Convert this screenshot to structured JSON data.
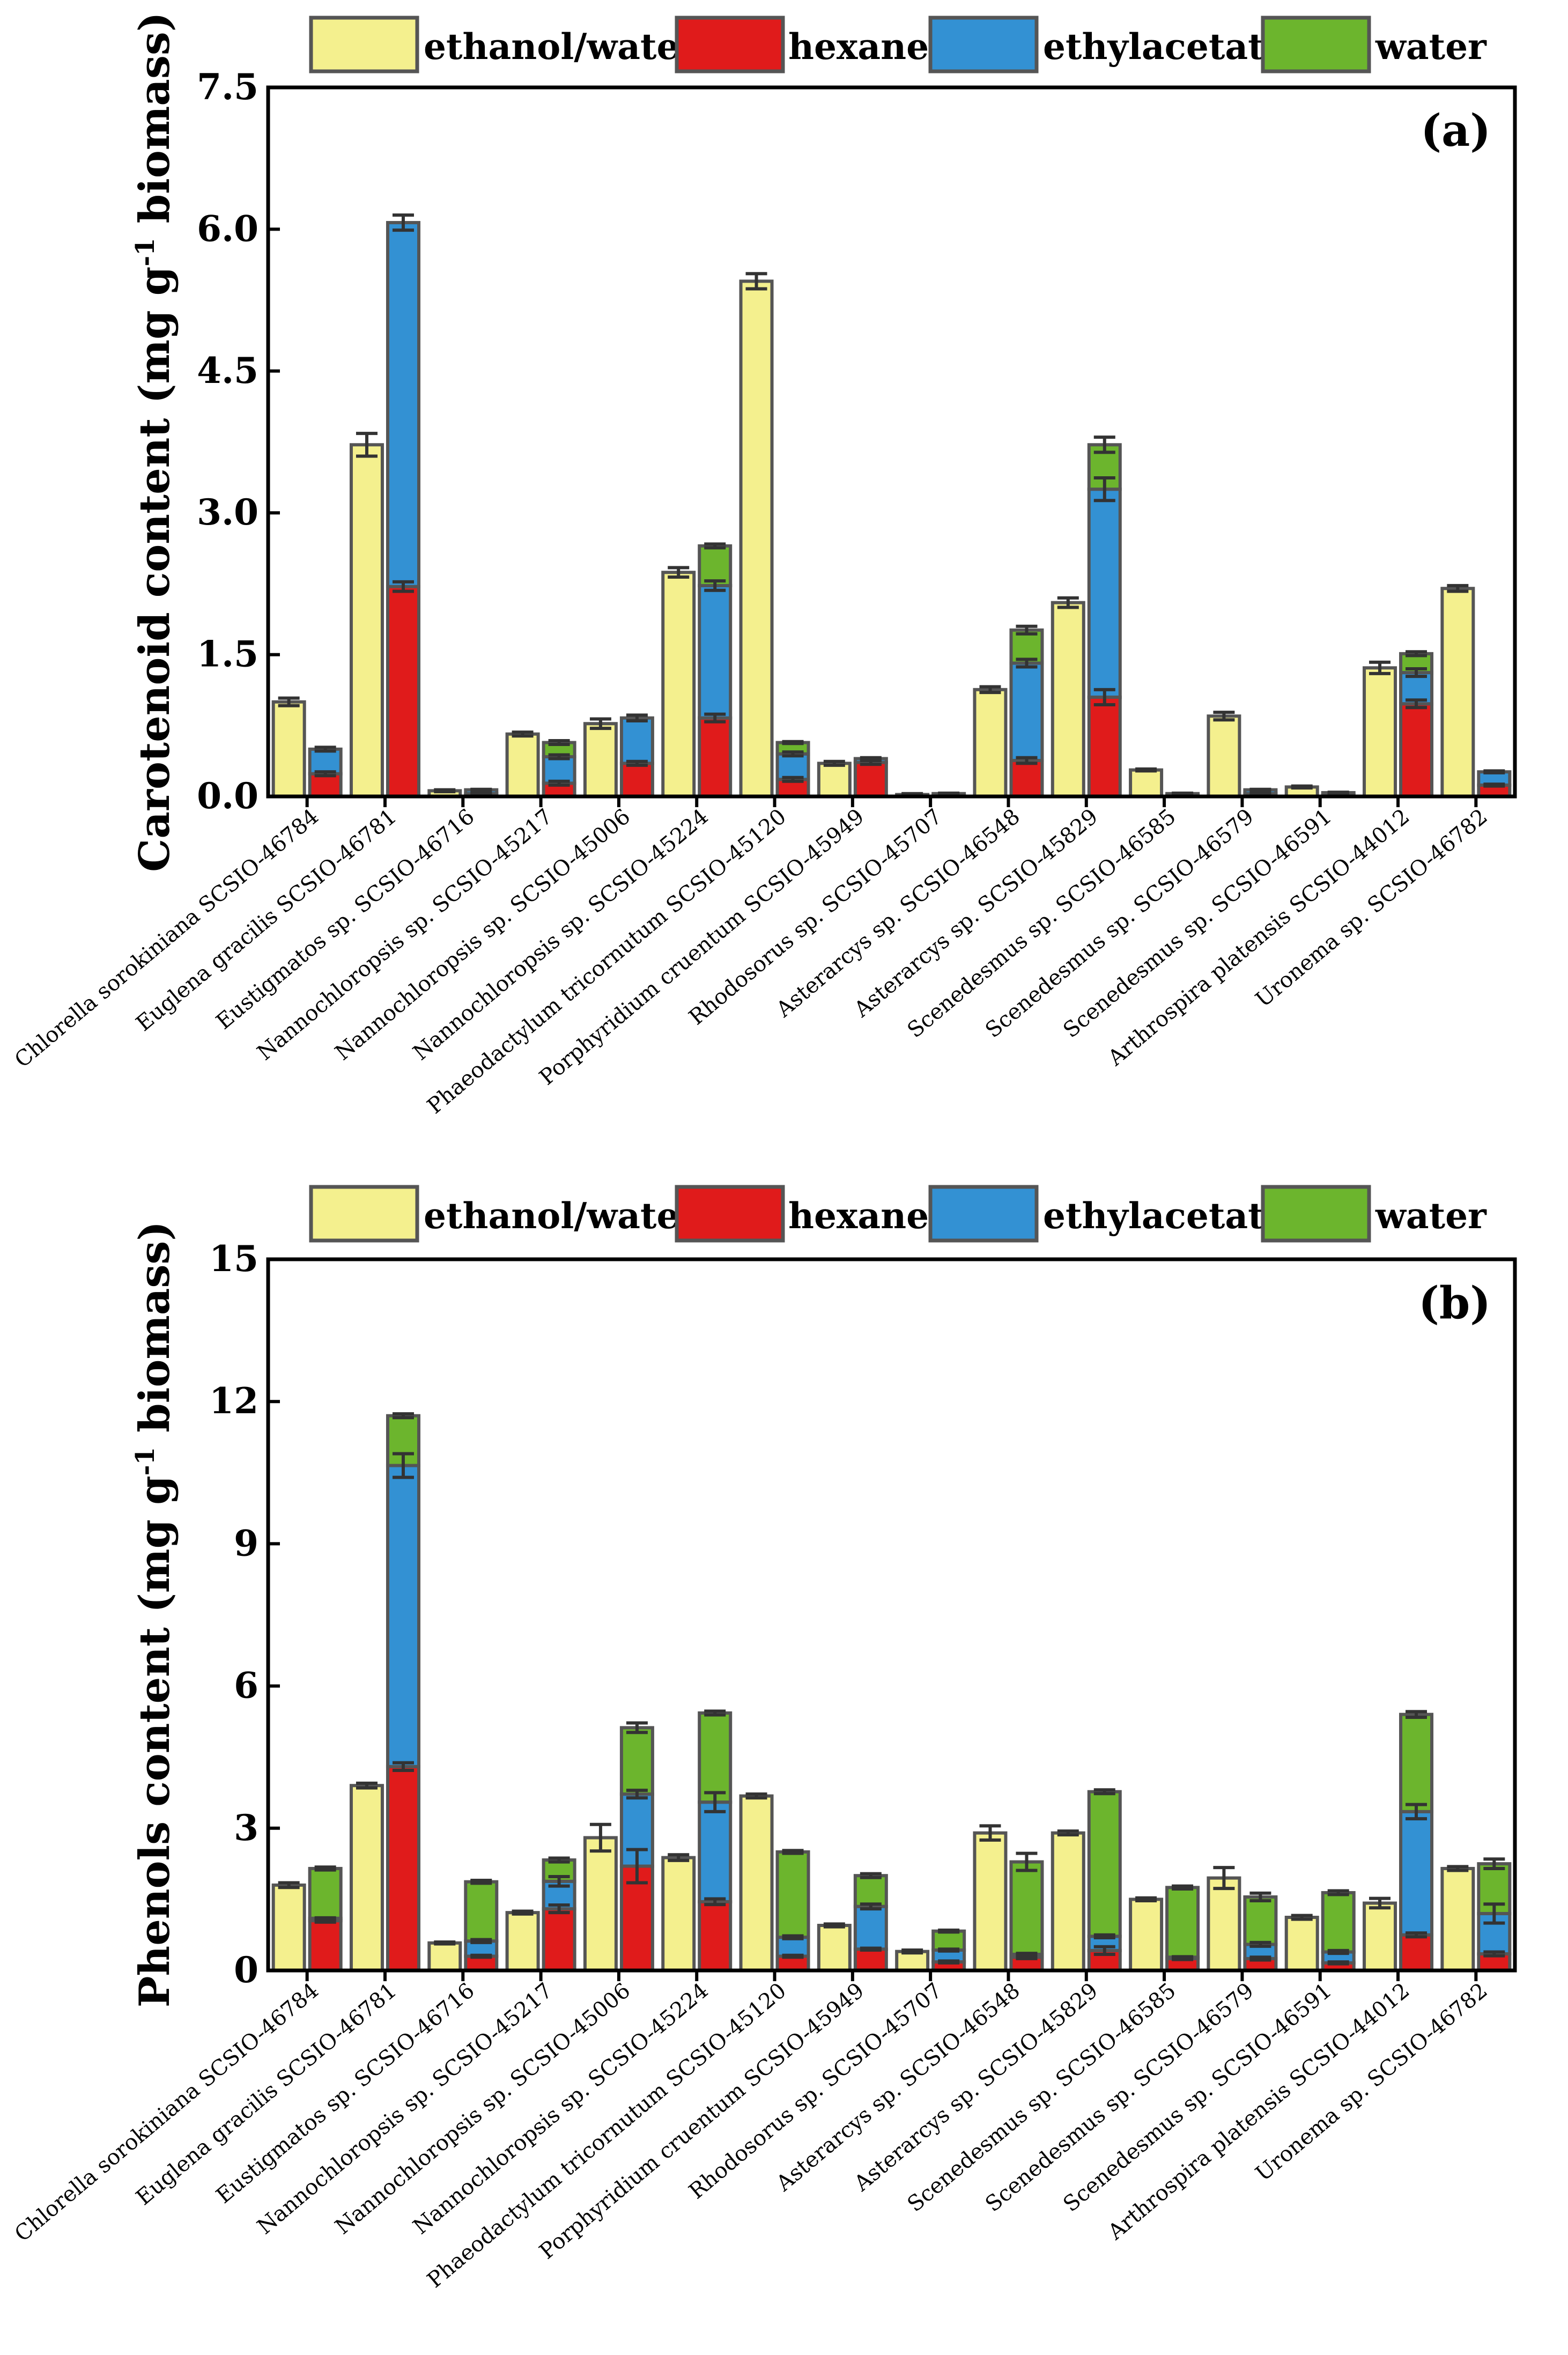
{
  "colors": {
    "ethanol_water": "#f4f08e",
    "hexane": "#e01b1b",
    "ethylacetate": "#3391d3",
    "water": "#6cb52d",
    "bar_outline": "#555555",
    "errorbar": "#333333"
  },
  "chart_data": [
    {
      "type": "bar",
      "panel": "(a)",
      "ylabel_main": "Carotenoid content (mg g",
      "ylabel_sup": "-1",
      "ylabel_tail": " biomass)",
      "xlabel": "",
      "ylim": [
        0,
        7.5
      ],
      "yticks": [
        0.0,
        1.5,
        3.0,
        4.5,
        6.0,
        7.5
      ],
      "ytick_labels": [
        "0.0",
        "1.5",
        "3.0",
        "4.5",
        "6.0",
        "7.5"
      ],
      "legend": [
        "ethanol/water",
        "hexane",
        "ethylacetate",
        "water"
      ],
      "categories": [
        "Chlorella sorokiniana SCSIO-46784",
        "Euglena gracilis SCSIO-46781",
        "Eustigmatos sp. SCSIO-46716",
        "Nannochloropsis sp. SCSIO-45217",
        "Nannochloropsis sp. SCSIO-45006",
        "Nannochloropsis sp. SCSIO-45224",
        "Phaeodactylum tricornutum SCSIO-45120",
        "Porphyridium cruentum SCSIO-45949",
        "Rhodosorus sp. SCSIO-45707",
        "Asterarcys sp. SCSIO-46548",
        "Asterarcys sp. SCSIO-45829",
        "Scenedesmus sp. SCSIO-46585",
        "Scenedesmus sp. SCSIO-46579",
        "Scenedesmus sp. SCSIO-46591",
        "Arthrospira platensis SCSIO-44012",
        "Uronema sp. SCSIO-46782"
      ],
      "series": [
        {
          "name": "ethanol/water",
          "values": [
            1.0,
            3.72,
            0.06,
            0.66,
            0.77,
            2.37,
            5.45,
            0.35,
            0.02,
            1.13,
            2.05,
            0.28,
            0.85,
            0.1,
            1.36,
            2.2
          ],
          "errors": [
            0.04,
            0.12,
            0.01,
            0.02,
            0.05,
            0.05,
            0.08,
            0.02,
            0.01,
            0.03,
            0.05,
            0.01,
            0.04,
            0.01,
            0.06,
            0.03
          ]
        },
        {
          "name": "hexane",
          "values": [
            0.24,
            2.22,
            0.03,
            0.14,
            0.35,
            0.83,
            0.18,
            0.36,
            0.01,
            0.38,
            1.05,
            0.01,
            0.03,
            0.02,
            0.98,
            0.12
          ],
          "errors": [
            0.02,
            0.05,
            0.005,
            0.02,
            0.02,
            0.04,
            0.02,
            0.02,
            0.005,
            0.03,
            0.08,
            0.005,
            0.005,
            0.005,
            0.04,
            0.01
          ]
        },
        {
          "name": "ethylacetate",
          "values": [
            0.26,
            3.85,
            0.04,
            0.28,
            0.48,
            1.4,
            0.27,
            0.04,
            0.02,
            1.03,
            2.2,
            0.02,
            0.04,
            0.02,
            0.33,
            0.14
          ],
          "errors": [
            0.02,
            0.08,
            0.005,
            0.02,
            0.03,
            0.05,
            0.02,
            0.01,
            0.005,
            0.04,
            0.12,
            0.005,
            0.005,
            0.005,
            0.04,
            0.01
          ]
        },
        {
          "name": "water",
          "values": [
            0.0,
            0.0,
            0.0,
            0.15,
            0.0,
            0.42,
            0.12,
            0.0,
            0.0,
            0.35,
            0.47,
            0.0,
            0.0,
            0.0,
            0.2,
            0.0
          ],
          "errors": [
            0.0,
            0.0,
            0.0,
            0.02,
            0.0,
            0.02,
            0.01,
            0.0,
            0.0,
            0.04,
            0.08,
            0.0,
            0.0,
            0.0,
            0.02,
            0.0
          ]
        }
      ]
    },
    {
      "type": "bar",
      "panel": "(b)",
      "ylabel_main": "Phenols content (mg g",
      "ylabel_sup": "-1",
      "ylabel_tail": " biomass)",
      "xlabel": "",
      "ylim": [
        0,
        15
      ],
      "yticks": [
        0,
        3,
        6,
        9,
        12,
        15
      ],
      "ytick_labels": [
        "0",
        "3",
        "6",
        "9",
        "12",
        "15"
      ],
      "legend": [
        "ethanol/water",
        "hexane",
        "ethylacetate",
        "water"
      ],
      "categories": [
        "Chlorella sorokiniana SCSIO-46784",
        "Euglena gracilis SCSIO-46781",
        "Eustigmatos sp. SCSIO-46716",
        "Nannochloropsis sp. SCSIO-45217",
        "Nannochloropsis sp. SCSIO-45006",
        "Nannochloropsis sp. SCSIO-45224",
        "Phaeodactylum tricornutum SCSIO-45120",
        "Porphyridium cruentum SCSIO-45949",
        "Rhodosorus sp. SCSIO-45707",
        "Asterarcys sp. SCSIO-46548",
        "Asterarcys sp. SCSIO-45829",
        "Scenedesmus sp. SCSIO-46585",
        "Scenedesmus sp. SCSIO-46579",
        "Scenedesmus sp. SCSIO-46591",
        "Arthrospira platensis SCSIO-44012",
        "Uronema sp. SCSIO-46782"
      ],
      "series": [
        {
          "name": "ethanol/water",
          "values": [
            1.8,
            3.9,
            0.58,
            1.22,
            2.8,
            2.38,
            3.68,
            0.95,
            0.4,
            2.9,
            2.9,
            1.5,
            1.95,
            1.12,
            1.42,
            2.15
          ],
          "errors": [
            0.05,
            0.05,
            0.02,
            0.03,
            0.28,
            0.06,
            0.04,
            0.03,
            0.03,
            0.15,
            0.04,
            0.03,
            0.22,
            0.04,
            0.1,
            0.04
          ]
        },
        {
          "name": "hexane",
          "values": [
            1.05,
            4.3,
            0.3,
            1.3,
            2.2,
            1.45,
            0.3,
            0.45,
            0.18,
            0.28,
            0.42,
            0.25,
            0.25,
            0.16,
            0.75,
            0.35
          ],
          "errors": [
            0.03,
            0.08,
            0.02,
            0.08,
            0.35,
            0.06,
            0.02,
            0.02,
            0.02,
            0.03,
            0.08,
            0.02,
            0.03,
            0.02,
            0.04,
            0.04
          ]
        },
        {
          "name": "ethylacetate",
          "values": [
            0.05,
            6.35,
            0.32,
            0.58,
            1.52,
            2.1,
            0.4,
            0.9,
            0.25,
            0.06,
            0.3,
            0.03,
            0.3,
            0.23,
            2.6,
            0.85
          ],
          "errors": [
            0.01,
            0.25,
            0.03,
            0.1,
            0.08,
            0.2,
            0.03,
            0.05,
            0.02,
            0.02,
            0.03,
            0.01,
            0.04,
            0.03,
            0.15,
            0.2
          ]
        },
        {
          "name": "water",
          "values": [
            1.05,
            1.05,
            1.25,
            0.45,
            1.4,
            1.88,
            1.8,
            0.65,
            0.4,
            1.95,
            3.05,
            1.47,
            1.0,
            1.25,
            2.05,
            1.05
          ],
          "errors": [
            0.03,
            0.04,
            0.03,
            0.04,
            0.1,
            0.04,
            0.03,
            0.04,
            0.02,
            0.18,
            0.04,
            0.03,
            0.08,
            0.04,
            0.06,
            0.1
          ]
        }
      ]
    }
  ]
}
